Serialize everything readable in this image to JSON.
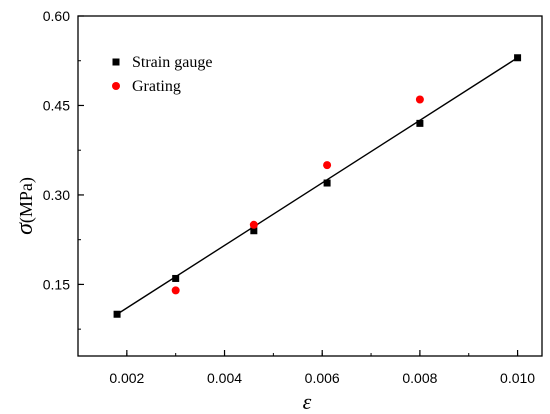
{
  "chart_data": {
    "type": "scatter",
    "xlabel": "ε",
    "ylabel": {
      "symbol": "σ",
      "unit": "(MPa)"
    },
    "xlim": [
      0.001,
      0.0105
    ],
    "ylim": [
      0.03,
      0.6
    ],
    "xticks": [
      "0.002",
      "0.004",
      "0.006",
      "0.008",
      "0.010"
    ],
    "yticks": [
      "0.15",
      "0.30",
      "0.45",
      "0.60"
    ],
    "grid": false,
    "legend_position": "top-left",
    "series": [
      {
        "name": "Strain gauge",
        "marker": "square",
        "color": "#000000",
        "line": true,
        "x": [
          0.0018,
          0.003,
          0.0046,
          0.0061,
          0.008,
          0.01
        ],
        "y": [
          0.1,
          0.16,
          0.24,
          0.32,
          0.42,
          0.53
        ]
      },
      {
        "name": "Grating",
        "marker": "circle",
        "color": "#ff0000",
        "line": false,
        "x": [
          0.003,
          0.0046,
          0.0061,
          0.008
        ],
        "y": [
          0.14,
          0.25,
          0.35,
          0.46
        ]
      }
    ],
    "fit_line": {
      "color": "#000000",
      "x": [
        0.0018,
        0.01
      ],
      "y": [
        0.1,
        0.53
      ]
    }
  }
}
